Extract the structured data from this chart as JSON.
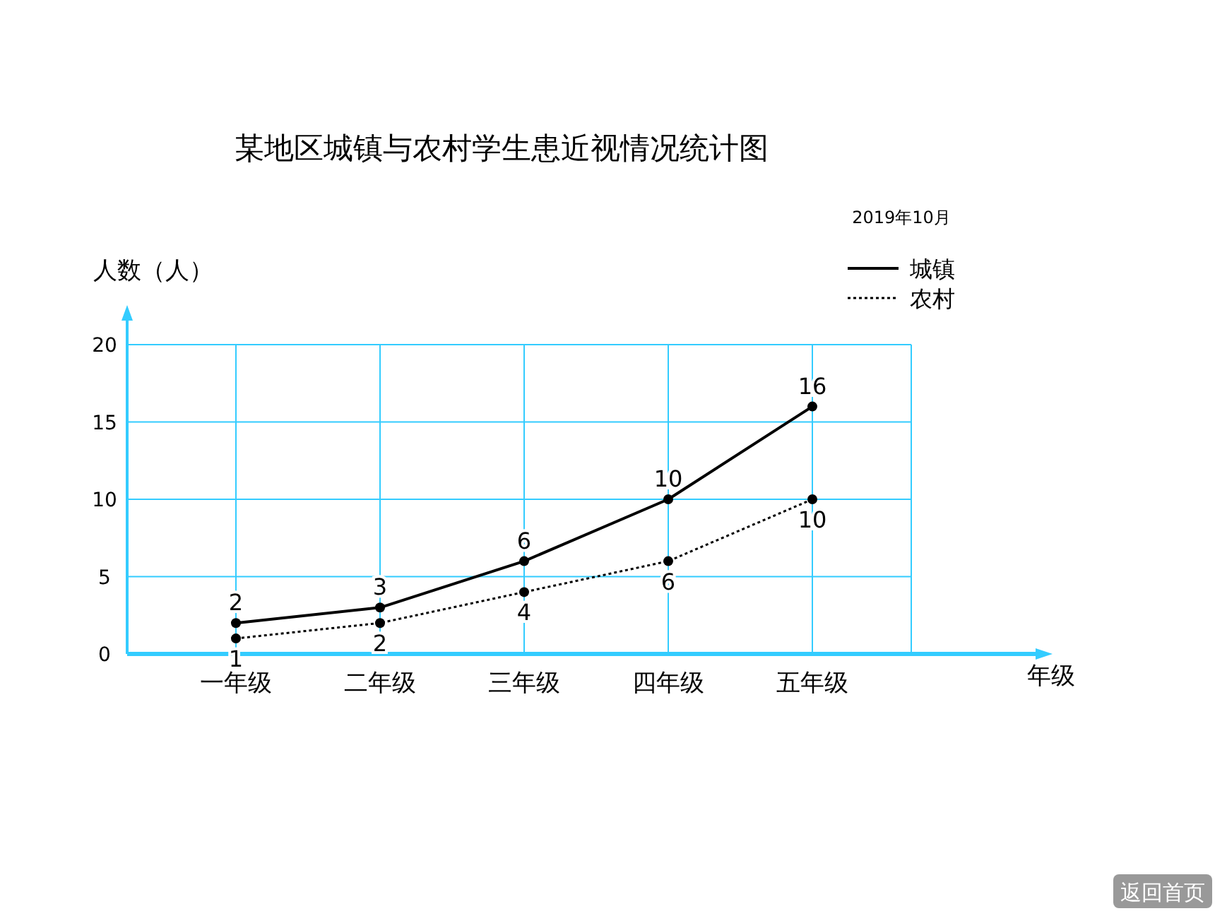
{
  "chart_data": {
    "type": "line",
    "title": "某地区城镇与农村学生患近视情况统计图",
    "subtitle": "2019年10月",
    "ylabel": "人数（人）",
    "xlabel": "年级",
    "categories": [
      "一年级",
      "二年级",
      "三年级",
      "四年级",
      "五年级"
    ],
    "series": [
      {
        "name": "城镇",
        "color": "#000000",
        "line_style": "solid",
        "values": [
          2,
          3,
          6,
          10,
          16
        ]
      },
      {
        "name": "农村",
        "color": "#000000",
        "line_style": "dotted",
        "values": [
          1,
          2,
          4,
          6,
          10
        ]
      }
    ],
    "ylim": [
      0,
      20
    ],
    "yticks": [
      0,
      5,
      10,
      15,
      20
    ],
    "grid": true,
    "legend": "top right",
    "marker": "circle",
    "data_labels": true,
    "annotations": [
      "返回首页"
    ]
  }
}
